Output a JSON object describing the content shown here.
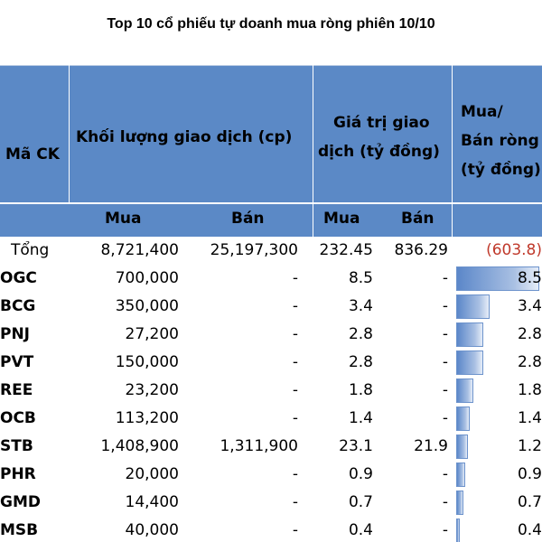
{
  "title": "Top 10 cổ phiếu tự doanh mua ròng phiên 10/10",
  "headers": {
    "code": "Mã CK",
    "volume_line1": "Khối lượng giao dịch (cp)",
    "value_line1": "Giá trị giao",
    "value_line2": "dịch (tỷ đồng)",
    "net_line1": "Mua/",
    "net_line2": "Bán ròng",
    "net_line3": "(tỷ đồng)",
    "buy": "Mua",
    "sell": "Bán",
    "buy2": "Mua",
    "sell2": "Bán"
  },
  "total": {
    "label": "Tổng",
    "buy_volume": "8,721,400",
    "sell_volume": "25,197,300",
    "buy_value": "232.45",
    "sell_value": "836.29",
    "net": "(603.8)"
  },
  "rows": [
    {
      "code": "OGC",
      "buy_volume": "700,000",
      "sell_volume": "-",
      "buy_value": "8.5",
      "sell_value": "-",
      "net": "8.5",
      "net_value": 8.5
    },
    {
      "code": "BCG",
      "buy_volume": "350,000",
      "sell_volume": "-",
      "buy_value": "3.4",
      "sell_value": "-",
      "net": "3.4",
      "net_value": 3.4
    },
    {
      "code": "PNJ",
      "buy_volume": "27,200",
      "sell_volume": "-",
      "buy_value": "2.8",
      "sell_value": "-",
      "net": "2.8",
      "net_value": 2.8
    },
    {
      "code": "PVT",
      "buy_volume": "150,000",
      "sell_volume": "-",
      "buy_value": "2.8",
      "sell_value": "-",
      "net": "2.8",
      "net_value": 2.8
    },
    {
      "code": "REE",
      "buy_volume": "23,200",
      "sell_volume": "-",
      "buy_value": "1.8",
      "sell_value": "-",
      "net": "1.8",
      "net_value": 1.8
    },
    {
      "code": "OCB",
      "buy_volume": "113,200",
      "sell_volume": "-",
      "buy_value": "1.4",
      "sell_value": "-",
      "net": "1.4",
      "net_value": 1.4
    },
    {
      "code": "STB",
      "buy_volume": "1,408,900",
      "sell_volume": "1,311,900",
      "buy_value": "23.1",
      "sell_value": "21.9",
      "net": "1.2",
      "net_value": 1.2
    },
    {
      "code": "PHR",
      "buy_volume": "20,000",
      "sell_volume": "-",
      "buy_value": "0.9",
      "sell_value": "-",
      "net": "0.9",
      "net_value": 0.9
    },
    {
      "code": "GMD",
      "buy_volume": "14,400",
      "sell_volume": "-",
      "buy_value": "0.7",
      "sell_value": "-",
      "net": "0.7",
      "net_value": 0.7
    },
    {
      "code": "MSB",
      "buy_volume": "40,000",
      "sell_volume": "-",
      "buy_value": "0.4",
      "sell_value": "-",
      "net": "0.4",
      "net_value": 0.4
    }
  ],
  "colors": {
    "header_bg": "#5b89c6",
    "negative": "#c0392b",
    "bar": "#5b87c9"
  }
}
